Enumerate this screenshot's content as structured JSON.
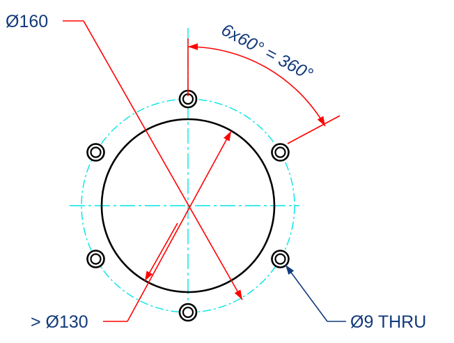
{
  "labels": {
    "outer_diameter": "Ø160",
    "inner_diameter": "> Ø130",
    "hole_spec": "Ø9 THRU",
    "angle_spec": "6x60° = 360°"
  },
  "colors": {
    "dimension": "#ff0000",
    "centerline": "#00e5e5",
    "geometry": "#000000",
    "text": "#123a7a",
    "leader": "#123a7a"
  },
  "bolt_pattern": {
    "hole_count": 6,
    "hole_angles_deg": [
      0,
      60,
      120,
      180,
      240,
      300
    ]
  }
}
